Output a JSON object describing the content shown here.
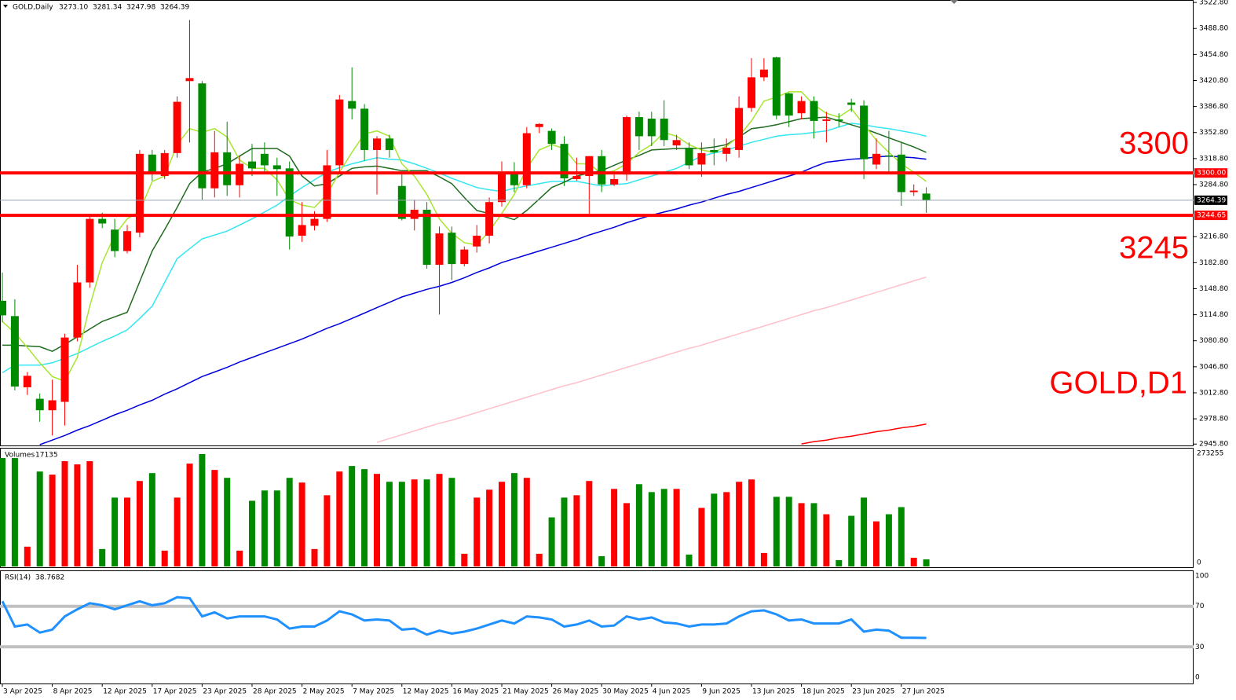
{
  "chart_data": [
    {
      "type": "candlestick",
      "symbol": "GOLD,Daily",
      "header_values": [
        "3273.10",
        "3281.34",
        "3247.98",
        "3264.39"
      ],
      "categories": [
        "3 Apr 2025",
        null,
        null,
        null,
        "8 Apr 2025",
        null,
        null,
        null,
        "12 Apr 2025",
        null,
        null,
        null,
        "17 Apr 2025",
        null,
        null,
        null,
        "23 Apr 2025",
        null,
        null,
        null,
        "28 Apr 2025",
        null,
        null,
        null,
        "2 May 2025",
        null,
        null,
        null,
        "7 May 2025",
        null,
        null,
        null,
        "12 May 2025",
        null,
        null,
        null,
        "16 May 2025",
        null,
        null,
        null,
        "21 May 2025",
        null,
        null,
        null,
        "26 May 2025",
        null,
        null,
        null,
        "30 May 2025",
        null,
        null,
        null,
        "4 Jun 2025",
        null,
        null,
        null,
        "9 Jun 2025",
        null,
        null,
        null,
        "13 Jun 2025",
        null,
        null,
        null,
        "18 Jun 2025",
        null,
        null,
        null,
        "23 Jun 2025",
        null,
        null,
        null,
        "27 Jun 2025",
        null,
        null
      ],
      "open": [
        3133,
        3113,
        3020,
        3005,
        2990,
        3001,
        3085,
        3157,
        3240,
        3226,
        3198,
        3222,
        3324,
        3296,
        3326,
        3420,
        3417,
        3280,
        3327,
        3284,
        3315,
        3325,
        3310,
        3306,
        3218,
        3231,
        3240,
        3310,
        3394,
        3384,
        3330,
        3345,
        3283,
        3240,
        3252,
        3180,
        3222,
        3181,
        3204,
        3218,
        3262,
        3300,
        3284,
        3360,
        3355,
        3338,
        3292,
        3296,
        3322,
        3285,
        3298,
        3373,
        3371,
        3371,
        3336,
        3333,
        3311,
        3330,
        3325,
        3330,
        3385,
        3425,
        3451,
        3404,
        3378,
        3394,
        3368,
        3370,
        3392,
        3388,
        3311,
        3323,
        3324,
        3275,
        3273.1
      ],
      "high": [
        3170,
        3135,
        3040,
        3012,
        3030,
        3090,
        3180,
        3245,
        3248,
        3240,
        3232,
        3330,
        3330,
        3330,
        3400,
        3500,
        3420,
        3355,
        3367,
        3322,
        3338,
        3340,
        3320,
        3315,
        3262,
        3250,
        3330,
        3402,
        3438,
        3390,
        3348,
        3350,
        3300,
        3265,
        3262,
        3230,
        3230,
        3204,
        3232,
        3268,
        3315,
        3314,
        3360,
        3365,
        3358,
        3348,
        3320,
        3322,
        3330,
        3298,
        3375,
        3380,
        3380,
        3395,
        3350,
        3340,
        3340,
        3345,
        3345,
        3400,
        3450,
        3450,
        3452,
        3405,
        3400,
        3400,
        3380,
        3378,
        3397,
        3395,
        3345,
        3355,
        3340,
        3285,
        3281.34
      ],
      "low": [
        3105,
        3016,
        3010,
        2975,
        2957,
        2970,
        3080,
        3150,
        3228,
        3190,
        3195,
        3216,
        3290,
        3292,
        3320,
        3340,
        3265,
        3268,
        3270,
        3268,
        3296,
        3300,
        3270,
        3200,
        3210,
        3225,
        3236,
        3300,
        3370,
        3316,
        3272,
        3320,
        3238,
        3225,
        3175,
        3115,
        3160,
        3178,
        3196,
        3208,
        3256,
        3275,
        3280,
        3352,
        3330,
        3283,
        3290,
        3247,
        3275,
        3283,
        3290,
        3330,
        3335,
        3335,
        3330,
        3305,
        3295,
        3310,
        3315,
        3320,
        3380,
        3420,
        3370,
        3360,
        3370,
        3345,
        3340,
        3360,
        3380,
        3292,
        3305,
        3300,
        3257,
        3270,
        3247.98
      ],
      "close": [
        3114,
        3021,
        3035,
        2990,
        3003,
        3085,
        3157,
        3240,
        3234,
        3198,
        3224,
        3325,
        3300,
        3326,
        3393,
        3424,
        3280,
        3327,
        3284,
        3312,
        3306,
        3310,
        3305,
        3217,
        3232,
        3240,
        3310,
        3396,
        3384,
        3330,
        3345,
        3330,
        3240,
        3252,
        3180,
        3221,
        3181,
        3200,
        3218,
        3262,
        3300,
        3284,
        3352,
        3364,
        3338,
        3293,
        3296,
        3322,
        3285,
        3292,
        3373,
        3348,
        3348,
        3343,
        3343,
        3310,
        3326,
        3327,
        3333,
        3385,
        3425,
        3435,
        3375,
        3375,
        3394,
        3368,
        3370,
        3368,
        3389,
        3318,
        3325,
        3322,
        3275,
        3277,
        3264.39
      ],
      "up_color": "#ff0000",
      "down_color": "#008a00",
      "ylim": [
        2944,
        3526
      ],
      "yticks": [
        {
          "value": 3522.8,
          "label": "3522.80"
        },
        {
          "value": 3488.8,
          "label": "3488.80"
        },
        {
          "value": 3454.8,
          "label": "3454.80"
        },
        {
          "value": 3420.8,
          "label": "3420.80"
        },
        {
          "value": 3386.8,
          "label": "3386.80"
        },
        {
          "value": 3352.8,
          "label": "3352.80"
        },
        {
          "value": 3318.8,
          "label": "3318.80"
        },
        {
          "value": 3284.8,
          "label": "3284.80"
        },
        {
          "value": 3216.8,
          "label": "3216.80"
        },
        {
          "value": 3182.8,
          "label": "3182.80"
        },
        {
          "value": 3148.8,
          "label": "3148.80"
        },
        {
          "value": 3114.8,
          "label": "3114.80"
        },
        {
          "value": 3080.8,
          "label": "3080.80"
        },
        {
          "value": 3046.8,
          "label": "3046.80"
        },
        {
          "value": 3012.8,
          "label": "3012.80"
        },
        {
          "value": 2978.8,
          "label": "2978.80"
        },
        {
          "value": 2945.8,
          "label": "2945.80"
        }
      ],
      "moving_averages": [
        {
          "color": "#ffc0cb",
          "values": [
            null,
            null,
            null,
            null,
            null,
            null,
            null,
            null,
            null,
            null,
            null,
            null,
            null,
            null,
            null,
            null,
            null,
            null,
            null,
            null,
            null,
            null,
            null,
            null,
            null,
            null,
            null,
            null,
            null,
            null,
            2948,
            2953,
            2958,
            2963,
            2968,
            2973,
            2977,
            2982,
            2987,
            2992,
            2997,
            3002,
            3007,
            3012,
            3017,
            3022,
            3026,
            3031,
            3036,
            3041,
            3046,
            3051,
            3056,
            3061,
            3066,
            3071,
            3075,
            3080,
            3085,
            3090,
            3095,
            3100,
            3105,
            3110,
            3115,
            3120,
            3124,
            3129,
            3134,
            3139,
            3144,
            3149,
            3154,
            3159,
            3164
          ]
        },
        {
          "color": "#ff0000",
          "values": [
            null,
            null,
            null,
            null,
            null,
            null,
            null,
            null,
            null,
            null,
            null,
            null,
            null,
            null,
            null,
            null,
            null,
            null,
            null,
            null,
            null,
            null,
            null,
            null,
            null,
            null,
            null,
            null,
            null,
            null,
            null,
            null,
            null,
            null,
            null,
            null,
            null,
            null,
            null,
            null,
            null,
            null,
            null,
            null,
            null,
            null,
            null,
            null,
            null,
            null,
            null,
            null,
            null,
            null,
            null,
            null,
            null,
            null,
            null,
            null,
            null,
            null,
            null,
            null,
            2946,
            2949,
            2951,
            2954,
            2956,
            2959,
            2962,
            2964,
            2967,
            2969,
            2972
          ]
        },
        {
          "color": "#0000dd",
          "values": [
            null,
            null,
            null,
            2945,
            2951,
            2957,
            2964,
            2970,
            2977,
            2984,
            2990,
            2997,
            3003,
            3011,
            3018,
            3026,
            3034,
            3040,
            3046,
            3053,
            3059,
            3065,
            3071,
            3077,
            3083,
            3090,
            3097,
            3103,
            3110,
            3117,
            3124,
            3131,
            3138,
            3143,
            3148,
            3152,
            3157,
            3163,
            3170,
            3176,
            3183,
            3188,
            3193,
            3198,
            3203,
            3208,
            3213,
            3219,
            3224,
            3229,
            3235,
            3240,
            3245,
            3249,
            3253,
            3258,
            3262,
            3267,
            3272,
            3276,
            3281,
            3286,
            3291,
            3296,
            3301,
            3308,
            3314,
            3316,
            3318,
            3319,
            3321,
            3322,
            3321,
            3320,
            3318
          ]
        },
        {
          "color": "#33e6f0",
          "values": [
            3039,
            3049,
            3049,
            3049,
            3052,
            3058,
            3064,
            3072,
            3080,
            3087,
            3095,
            3110,
            3126,
            3157,
            3188,
            3201,
            3214,
            3219,
            3224,
            3232,
            3240,
            3249,
            3258,
            3270,
            3281,
            3291,
            3301,
            3307,
            3312,
            3316,
            3320,
            3318,
            3317,
            3312,
            3306,
            3300,
            3293,
            3287,
            3281,
            3278,
            3276,
            3280,
            3283,
            3286,
            3289,
            3289,
            3289,
            3286,
            3283,
            3285,
            3286,
            3291,
            3296,
            3301,
            3306,
            3314,
            3322,
            3326,
            3330,
            3335,
            3340,
            3344,
            3348,
            3350,
            3351,
            3353,
            3355,
            3360,
            3365,
            3363,
            3360,
            3358,
            3355,
            3352,
            3348
          ]
        },
        {
          "color": "#1f6b1f",
          "values": [
            3075,
            3075,
            3074,
            3073,
            3067,
            3076,
            3086,
            3096,
            3106,
            3112,
            3118,
            3158,
            3198,
            3226,
            3255,
            3286,
            3301,
            3306,
            3312,
            3322,
            3332,
            3332,
            3332,
            3322,
            3296,
            3283,
            3286,
            3296,
            3306,
            3308,
            3309,
            3306,
            3303,
            3303,
            3303,
            3295,
            3286,
            3268,
            3251,
            3247,
            3244,
            3239,
            3251,
            3266,
            3281,
            3288,
            3296,
            3300,
            3303,
            3310,
            3317,
            3323,
            3330,
            3331,
            3332,
            3332,
            3332,
            3334,
            3337,
            3347,
            3358,
            3360,
            3363,
            3367,
            3371,
            3372,
            3373,
            3368,
            3363,
            3358,
            3352,
            3346,
            3340,
            3334,
            3327
          ]
        },
        {
          "color": "#a6e62e",
          "values": [
            3106,
            3091,
            3072,
            3052,
            3034,
            3028,
            3059,
            3126,
            3183,
            3219,
            3240,
            3250,
            3289,
            3296,
            3337,
            3358,
            3353,
            3358,
            3347,
            3317,
            3306,
            3306,
            3291,
            3265,
            3258,
            3255,
            3272,
            3301,
            3327,
            3351,
            3355,
            3348,
            3312,
            3296,
            3272,
            3240,
            3221,
            3209,
            3206,
            3224,
            3247,
            3272,
            3306,
            3330,
            3337,
            3332,
            3312,
            3312,
            3299,
            3303,
            3312,
            3327,
            3337,
            3353,
            3348,
            3337,
            3330,
            3327,
            3335,
            3348,
            3368,
            3394,
            3399,
            3406,
            3406,
            3389,
            3378,
            3373,
            3384,
            3363,
            3343,
            3327,
            3312,
            3301,
            3289
          ]
        }
      ],
      "hlines": [
        {
          "value": 3300,
          "label": "3300.00"
        },
        {
          "value": 3244.65,
          "label": "3244.65"
        }
      ],
      "hline_color": "#ff0000",
      "current_price": {
        "value": 3264.39,
        "label": "3264.39"
      },
      "annotations": [
        "3300",
        "3245",
        "GOLD,D1"
      ]
    },
    {
      "type": "bar",
      "title": "Volumes",
      "values": [
        261800,
        261800,
        47800,
        229300,
        221700,
        254200,
        246500,
        254200,
        42000,
        166300,
        166300,
        206400,
        225500,
        38200,
        166300,
        248400,
        271400,
        233100,
        214000,
        38200,
        158600,
        183500,
        183500,
        214000,
        202600,
        42000,
        172000,
        229300,
        242700,
        235100,
        223600,
        204500,
        204500,
        210200,
        210200,
        223600,
        214000,
        30600,
        166300,
        185400,
        204500,
        225500,
        214000,
        30600,
        118500,
        166300,
        172000,
        206400,
        24800,
        187300,
        152900,
        198700,
        179600,
        187300,
        187300,
        28700,
        141400,
        175800,
        179600,
        204500,
        210200,
        32500,
        168200,
        168200,
        152900,
        152900,
        126100,
        15300,
        122300,
        166300,
        108900,
        126100,
        143300,
        21000,
        17135
      ],
      "ylim": [
        0,
        273255
      ],
      "yticks": [
        0,
        273255
      ]
    },
    {
      "type": "line",
      "title": "RSI(14)",
      "color": "#1e90ff",
      "values": [
        75,
        50,
        52,
        44,
        47,
        60,
        67,
        73,
        71,
        67,
        71,
        75,
        71,
        73,
        79,
        78,
        60,
        64,
        58,
        60,
        60,
        60,
        57,
        48,
        50,
        50,
        56,
        65,
        62,
        56,
        57,
        56,
        47,
        48,
        42,
        46,
        43,
        45,
        48,
        52,
        56,
        53,
        60,
        59,
        57,
        50,
        52,
        56,
        50,
        51,
        60,
        57,
        59,
        54,
        53,
        50,
        52,
        52,
        53,
        60,
        65,
        66,
        62,
        56,
        57,
        53,
        53,
        53,
        57,
        45,
        47,
        46,
        39,
        39,
        38.7682
      ],
      "ylim": [
        0,
        100
      ],
      "yticks": [
        0,
        30,
        70,
        100
      ],
      "levels": [
        30,
        70
      ],
      "level_color": "#c0c0c0"
    }
  ]
}
